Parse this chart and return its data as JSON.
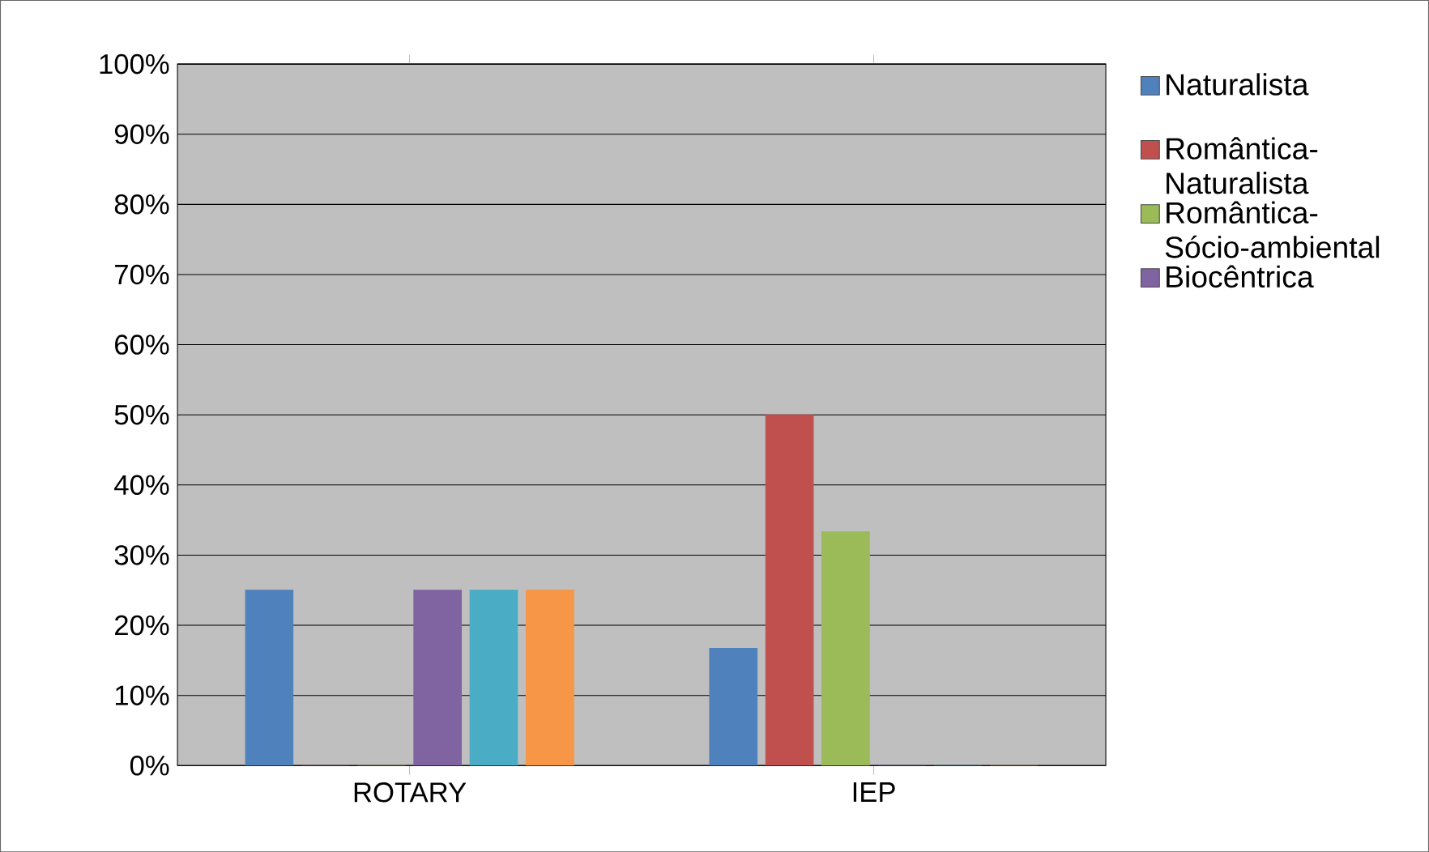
{
  "chart_data": {
    "type": "bar",
    "categories": [
      "ROTARY",
      "IEP"
    ],
    "series": [
      {
        "name": "Naturalista",
        "color": "#4f81bd",
        "values": [
          25,
          16.7
        ]
      },
      {
        "name": "Romântica-Naturalista",
        "color": "#c0504d",
        "values": [
          0,
          50
        ]
      },
      {
        "name": "Romântica-Sócio-ambiental",
        "color": "#9bbb59",
        "values": [
          0,
          33.3
        ]
      },
      {
        "name": "Biocêntrica",
        "color": "#8064a2",
        "values": [
          25,
          0
        ]
      },
      {
        "color": "#4bacc6",
        "values": [
          25,
          0
        ]
      },
      {
        "color": "#f79646",
        "values": [
          25,
          0
        ]
      }
    ],
    "ylim": [
      0,
      100
    ],
    "yticks": [
      {
        "value": 0,
        "label": "0%"
      },
      {
        "value": 10,
        "label": "10%"
      },
      {
        "value": 20,
        "label": "20%"
      },
      {
        "value": 30,
        "label": "30%"
      },
      {
        "value": 40,
        "label": "40%"
      },
      {
        "value": 50,
        "label": "50%"
      },
      {
        "value": 60,
        "label": "60%"
      },
      {
        "value": 70,
        "label": "70%"
      },
      {
        "value": 80,
        "label": "80%"
      },
      {
        "value": 90,
        "label": "90%"
      },
      {
        "value": 100,
        "label": "100%"
      }
    ],
    "grid": "y",
    "legend": "right"
  }
}
